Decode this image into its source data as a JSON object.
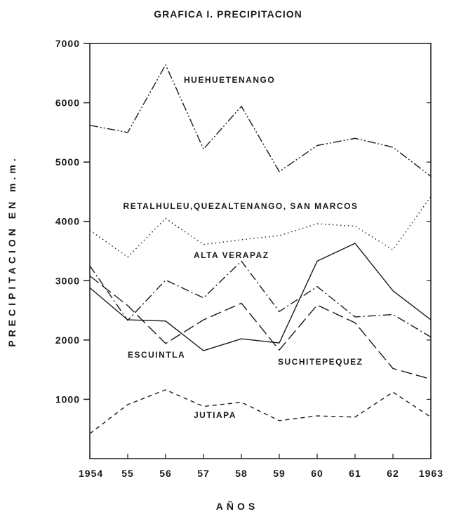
{
  "chart_data": {
    "type": "line",
    "title": "GRAFICA I. PRECIPITACION",
    "xlabel": "AÑOS",
    "ylabel": "PRECIPITACION EN m.m.",
    "x": [
      1954,
      1955,
      1956,
      1957,
      1958,
      1959,
      1960,
      1961,
      1962,
      1963
    ],
    "x_tick_labels": [
      "1954",
      "55",
      "56",
      "57",
      "58",
      "59",
      "60",
      "61",
      "62",
      "1963"
    ],
    "y_ticks": [
      1000,
      2000,
      3000,
      4000,
      5000,
      6000,
      7000
    ],
    "y_tick_labels": [
      "1000",
      "2000",
      "3000",
      "4000",
      "5000",
      "6000",
      "7000"
    ],
    "xlim": [
      1954,
      1963
    ],
    "ylim": [
      0,
      7000
    ],
    "grid": false,
    "legend": "none",
    "series": [
      {
        "name": "HUEHUETENANGO",
        "style": "dash-dot-dot",
        "values": [
          5620,
          5500,
          6640,
          5220,
          5940,
          4840,
          5280,
          5400,
          5250,
          4760
        ]
      },
      {
        "name": "RETALHULEU, QUEZALTENANGO, SAN MARCOS",
        "style": "dotted",
        "values": [
          3850,
          3400,
          4050,
          3610,
          3690,
          3760,
          3960,
          3920,
          3520,
          4420
        ]
      },
      {
        "name": "ALTA VERAPAZ",
        "style": "dash-dot",
        "values": [
          3250,
          2330,
          3010,
          2710,
          3330,
          2480,
          2900,
          2390,
          2430,
          2050
        ]
      },
      {
        "name": "ESCUINTLA",
        "style": "solid",
        "values": [
          2880,
          2340,
          2320,
          1820,
          2020,
          1950,
          3330,
          3630,
          2830,
          2340
        ]
      },
      {
        "name": "SUCHITEPEQUEZ",
        "style": "long-dash",
        "values": [
          3080,
          2580,
          1940,
          2340,
          2620,
          1830,
          2590,
          2290,
          1520,
          1340
        ]
      },
      {
        "name": "JUTIAPA",
        "style": "short-dash",
        "values": [
          420,
          910,
          1160,
          880,
          950,
          640,
          720,
          700,
          1120,
          700
        ]
      }
    ],
    "annotations": [
      {
        "text": "HUEHUETENANGO",
        "series": 0
      },
      {
        "text": "RETALHULEU,QUEZALTENANGO, SAN MARCOS",
        "series": 1
      },
      {
        "text": "ALTA VERAPAZ",
        "series": 2
      },
      {
        "text": "ESCUINTLA",
        "series": 3
      },
      {
        "text": "SUCHITEPEQUEZ",
        "series": 4
      },
      {
        "text": "JUTIAPA",
        "series": 5
      }
    ]
  }
}
